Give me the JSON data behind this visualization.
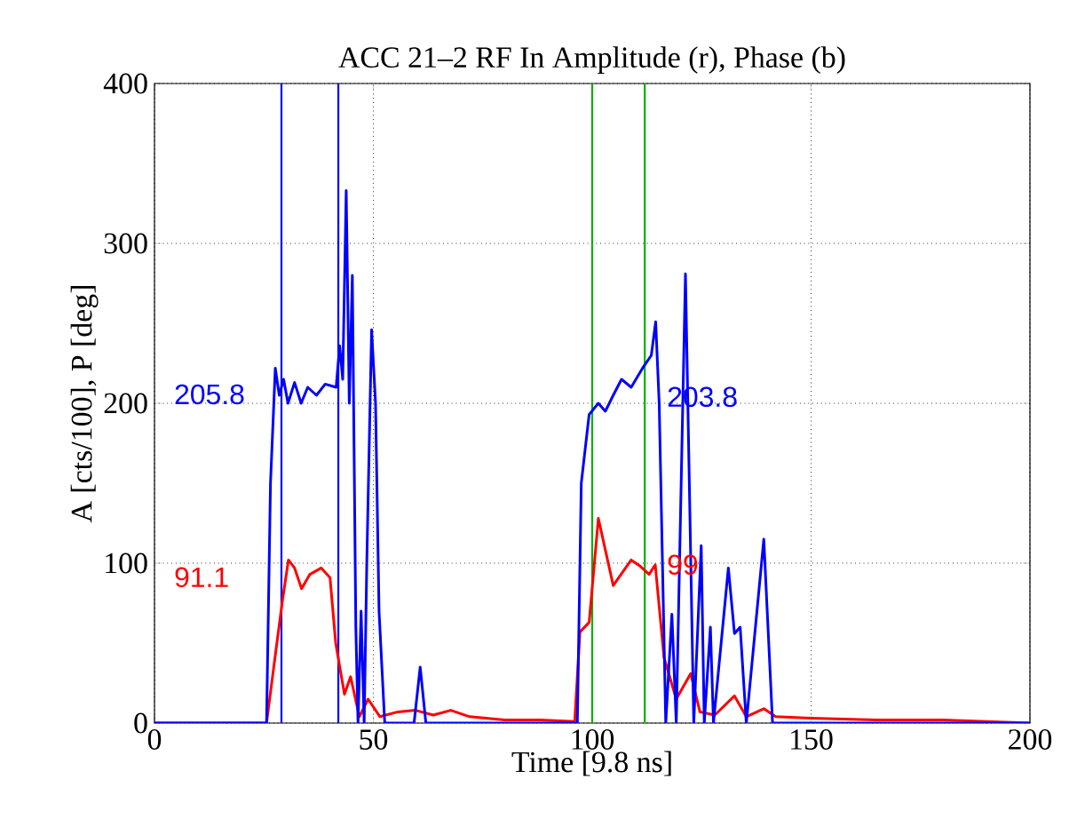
{
  "chart_data": {
    "type": "line",
    "title": "ACC 21–2 RF In Amplitude (r), Phase (b)",
    "xlabel": "Time [9.8 ns]",
    "ylabel": "A [cts/100], P [deg]",
    "xlim": [
      0,
      200
    ],
    "ylim": [
      0,
      400
    ],
    "xticks": [
      0,
      50,
      100,
      150,
      200
    ],
    "yticks": [
      0,
      100,
      200,
      300,
      400
    ],
    "grid": true,
    "series": [
      {
        "color": "#0000ff",
        "x": [
          0,
          25.6,
          26.5,
          27.6,
          28.5,
          29.5,
          30.5,
          32,
          33.5,
          35,
          37,
          39,
          41.5,
          42.3,
          43,
          43.8,
          44.5,
          45.2,
          46,
          46.5,
          47.2,
          47.9,
          48.5,
          49.6,
          50.5,
          51.3,
          52.6,
          59.3,
          60.7,
          62,
          96.6,
          97.5,
          99.3,
          101.4,
          103,
          104.8,
          106.7,
          108.9,
          111.5,
          113.5,
          114.5,
          115.3,
          116.8,
          118.2,
          119.2,
          121.3,
          123.2,
          124.9,
          125.6,
          127,
          127.7,
          131.1,
          132.5,
          133.8,
          135.2,
          139.2,
          141.2,
          200
        ],
        "values": [
          0,
          0,
          150,
          222,
          205,
          215,
          200,
          213,
          200,
          210,
          205,
          212,
          210,
          236,
          215,
          333,
          200,
          280,
          60,
          0,
          70,
          0,
          100,
          246,
          200,
          70,
          0,
          0,
          35,
          0,
          0,
          150,
          193,
          200,
          195,
          205,
          215,
          210,
          222,
          230,
          251,
          200,
          0,
          68,
          0,
          281,
          0,
          111,
          0,
          60,
          0,
          97,
          56,
          60,
          0,
          115,
          0,
          0
        ]
      },
      {
        "color": "#ff0000",
        "x": [
          0,
          25.6,
          27.2,
          29.2,
          30.6,
          32,
          33.6,
          35.5,
          38.1,
          40.1,
          41.4,
          43.4,
          44.8,
          46.8,
          48.8,
          51.5,
          55.6,
          59.6,
          63.7,
          67.7,
          72,
          80,
          88,
          96,
          97.2,
          99.3,
          101.4,
          104.8,
          108.9,
          111,
          113,
          114.4,
          116.4,
          119.2,
          122.5,
          124.6,
          128,
          132.5,
          135.2,
          139.2,
          141.9,
          150,
          165,
          180,
          200
        ],
        "values": [
          0,
          0,
          34,
          76,
          102,
          97,
          84,
          93,
          97,
          91,
          50,
          18,
          29,
          4,
          15,
          4,
          7,
          8,
          5,
          8,
          4,
          2,
          2,
          1,
          57,
          63,
          128,
          86,
          102,
          98,
          93,
          99,
          41,
          15,
          31,
          7,
          5,
          17,
          4,
          9,
          4,
          3,
          2,
          2,
          0
        ]
      }
    ],
    "ref_lines": [
      {
        "axis": "x",
        "value": 29,
        "color": "#0000ff"
      },
      {
        "axis": "x",
        "value": 42,
        "color": "#0000ff"
      },
      {
        "axis": "x",
        "value": 100,
        "color": "#00b000"
      },
      {
        "axis": "x",
        "value": 112,
        "color": "#00b000"
      }
    ],
    "annotations": [
      "205.8",
      "91.1",
      "203.8",
      "99"
    ]
  }
}
